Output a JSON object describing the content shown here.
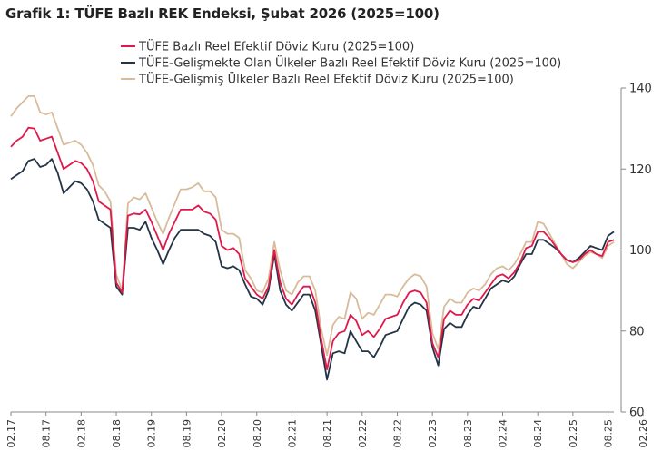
{
  "title": "Grafik 1: TÜFE Bazlı REK Endeksi, Şubat 2026 (2025=100)",
  "chart_data": {
    "type": "line",
    "title": "Grafik 1: TÜFE Bazlı REK Endeksi, Şubat 2026 (2025=100)",
    "xlabel": "",
    "ylabel": "",
    "ylim": [
      60,
      140
    ],
    "yticks": [
      60,
      80,
      100,
      120,
      140
    ],
    "grid": false,
    "legend_position": "top",
    "x_start": "2017-02",
    "xticks": [
      "02.17",
      "08.17",
      "02.18",
      "08.18",
      "02.19",
      "08.19",
      "02.20",
      "08.20",
      "02.21",
      "08.21",
      "02.22",
      "08.22",
      "02.23",
      "08.23",
      "02.24",
      "08.24",
      "02.25",
      "08.25",
      "02.26"
    ],
    "series": [
      {
        "name": "TÜFE  Bazlı Reel Efektif Döviz Kuru (2025=100)",
        "color": "#e0194c",
        "values": [
          125.5,
          127,
          128,
          130.2,
          130,
          127,
          127.5,
          128,
          124,
          120,
          121,
          122,
          121.5,
          120,
          117,
          112,
          111,
          110,
          92,
          89.5,
          108.5,
          109,
          108.8,
          110,
          107,
          103.5,
          100,
          104,
          107,
          110,
          110,
          110,
          111,
          109.5,
          109,
          107.5,
          101,
          100,
          100.5,
          99,
          93,
          91,
          89,
          88,
          91,
          100,
          92,
          88,
          86.5,
          89,
          91,
          91,
          87,
          78,
          70.5,
          77.5,
          79.5,
          80,
          84,
          82.5,
          79,
          80,
          78.5,
          80.5,
          83,
          83.5,
          84,
          87,
          89.5,
          90,
          89.5,
          87,
          77,
          73.5,
          83,
          85,
          84,
          84,
          86.5,
          88,
          87.5,
          89.5,
          91.5,
          93.5,
          94,
          93,
          94.5,
          97,
          100.5,
          101,
          104.5,
          104.5,
          103,
          101,
          99,
          97.5,
          97,
          97.5,
          99,
          100,
          99,
          98.5,
          102,
          102.5
        ]
      },
      {
        "name": "TÜFE-Gelişmekte Olan Ülkeler Bazlı Reel Efektif Döviz Kuru (2025=100)",
        "color": "#243447",
        "values": [
          117.5,
          118.5,
          119.5,
          122,
          122.5,
          120.5,
          121,
          122.5,
          119,
          114,
          115.5,
          117,
          116.5,
          115,
          112,
          107.5,
          106.5,
          105.5,
          91,
          89,
          105.5,
          105.5,
          105,
          107,
          103,
          100,
          96.5,
          100,
          103,
          105,
          105,
          105,
          105,
          104,
          103.5,
          102,
          96,
          95.5,
          96,
          95,
          91.5,
          88.5,
          88,
          86.5,
          90,
          99,
          90,
          86.5,
          85,
          87,
          89,
          89,
          85,
          76.5,
          68,
          74.5,
          75,
          74.5,
          80,
          77.5,
          75,
          75,
          73.5,
          76,
          79,
          79.5,
          80,
          83,
          86,
          87,
          86.5,
          85,
          76,
          71.5,
          80.5,
          82,
          81,
          81,
          84,
          86,
          85.5,
          88,
          90.5,
          91.5,
          92.5,
          92,
          93.5,
          96.5,
          99,
          99,
          102.5,
          102.5,
          101.5,
          100.5,
          99,
          97.5,
          97,
          98,
          99.5,
          101,
          100.5,
          100,
          103.5,
          104.5
        ]
      },
      {
        "name": "TÜFE-Gelişmiş Ülkeler Bazlı Reel Efektif Döviz Kuru (2025=100)",
        "color": "#d8bc9a",
        "values": [
          133,
          135,
          136.5,
          138,
          138,
          134,
          133.5,
          134,
          130,
          126,
          126.5,
          127,
          126,
          124,
          121,
          116,
          114.5,
          112,
          94,
          90,
          111.5,
          113,
          112.5,
          114,
          110.5,
          107,
          104,
          108,
          111.5,
          115,
          115,
          115.5,
          116.5,
          114.5,
          114.5,
          113,
          105,
          104,
          104,
          103,
          95,
          93,
          90,
          89.5,
          93,
          102,
          95,
          90,
          89,
          92,
          93.5,
          93.5,
          90,
          80.5,
          74,
          81.5,
          83.5,
          83,
          89.5,
          88,
          83,
          84.5,
          84,
          86.5,
          89,
          89,
          88.5,
          91,
          93,
          94,
          93.5,
          91,
          79.5,
          75.5,
          86,
          88,
          87,
          87,
          89.5,
          90.5,
          90,
          91.5,
          94,
          95.5,
          96,
          95,
          96.5,
          99,
          102,
          102,
          107,
          106.5,
          104,
          101.5,
          99,
          96.5,
          95.5,
          97,
          98.5,
          99.5,
          99,
          98,
          101,
          102
        ]
      }
    ]
  }
}
